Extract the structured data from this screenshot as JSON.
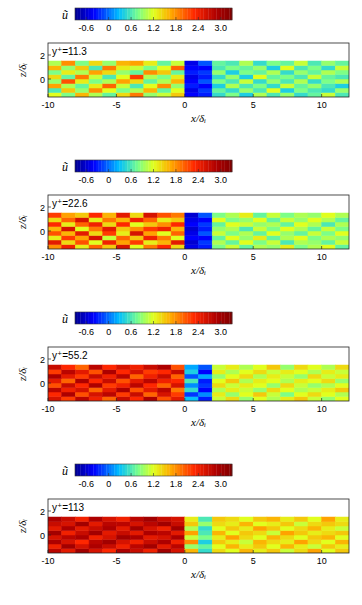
{
  "chart_data": [
    {
      "type": "heatmap",
      "annotation": "y⁺=11.3",
      "x_label": "x/δᵢ",
      "y_label": "z/δᵢ",
      "colorbar_label": "ũ",
      "xlim": [
        -10,
        12
      ],
      "xticks": [
        -10,
        -5,
        0,
        5,
        10
      ],
      "ylim": [
        -1.5,
        3
      ],
      "yticks": [
        0,
        2
      ],
      "color_range": [
        -0.9,
        3.3
      ],
      "color_ticks": [
        -0.6,
        0,
        0.6,
        1.2,
        1.8,
        2.4,
        {
          "value": 3,
          "label": "3.0"
        }
      ],
      "x_bins": [
        -10,
        -9,
        -8,
        -7,
        -6,
        -5,
        -4,
        -3,
        -2,
        -1,
        0,
        1,
        2,
        3,
        4,
        5,
        6,
        7,
        8,
        9,
        10,
        11,
        12
      ],
      "y_bins": [
        -1.5,
        -1.125,
        -0.75,
        -0.375,
        0,
        0.375,
        0.75,
        1.125,
        1.5
      ],
      "cells": [
        [
          1.2,
          0.8,
          1.6,
          1.0,
          0.7,
          1.4,
          1.9,
          0.9,
          1.1,
          1.5,
          -0.4,
          -0.3,
          0.5,
          0.8,
          0.4,
          1.0,
          0.6,
          0.9,
          0.5,
          0.7,
          1.1,
          0.6
        ],
        [
          0.6,
          1.5,
          0.9,
          1.8,
          1.2,
          0.8,
          1.0,
          1.6,
          0.7,
          1.2,
          -0.5,
          -0.2,
          0.7,
          0.5,
          0.9,
          0.6,
          1.2,
          0.4,
          0.8,
          0.6,
          0.5,
          0.9
        ],
        [
          1.7,
          1.0,
          0.7,
          1.3,
          2.0,
          1.1,
          0.6,
          1.2,
          1.8,
          0.9,
          -0.3,
          -0.4,
          0.4,
          1.0,
          0.6,
          0.8,
          0.5,
          1.1,
          0.7,
          0.9,
          0.6,
          0.4
        ],
        [
          0.9,
          2.1,
          1.3,
          0.8,
          1.0,
          1.7,
          1.4,
          0.7,
          1.0,
          1.6,
          -0.4,
          -0.1,
          0.8,
          0.6,
          1.1,
          0.5,
          0.9,
          0.6,
          1.0,
          0.5,
          0.8,
          1.0
        ],
        [
          1.4,
          0.7,
          1.9,
          1.1,
          0.6,
          1.2,
          2.2,
          1.0,
          0.8,
          1.3,
          -0.5,
          -0.3,
          0.5,
          0.9,
          0.4,
          1.2,
          0.7,
          0.8,
          0.6,
          1.1,
          0.7,
          0.6
        ],
        [
          0.8,
          1.3,
          1.0,
          1.7,
          1.4,
          0.9,
          0.7,
          1.8,
          1.5,
          0.7,
          -0.3,
          -0.2,
          0.9,
          0.4,
          0.8,
          0.7,
          1.0,
          0.5,
          0.9,
          0.7,
          1.0,
          0.8
        ],
        [
          1.6,
          0.9,
          1.5,
          0.6,
          1.9,
          1.3,
          1.1,
          0.8,
          1.2,
          2.0,
          -0.4,
          -0.4,
          0.6,
          0.8,
          0.7,
          0.9,
          0.4,
          1.2,
          0.6,
          0.8,
          0.5,
          1.1
        ],
        [
          1.0,
          1.8,
          0.8,
          1.4,
          0.9,
          1.6,
          1.7,
          1.3,
          0.7,
          1.1,
          -0.5,
          -0.1,
          0.7,
          0.6,
          1.0,
          0.5,
          0.8,
          0.7,
          1.1,
          0.6,
          0.9,
          0.7
        ]
      ]
    },
    {
      "type": "heatmap",
      "annotation": "y⁺=22.6",
      "x_label": "x/δᵢ",
      "y_label": "z/δᵢ",
      "colorbar_label": "ũ",
      "xlim": [
        -10,
        12
      ],
      "xticks": [
        -10,
        -5,
        0,
        5,
        10
      ],
      "ylim": [
        -1.5,
        3
      ],
      "yticks": [
        0,
        2
      ],
      "color_range": [
        -0.9,
        3.3
      ],
      "color_ticks": [
        -0.6,
        0,
        0.6,
        1.2,
        1.8,
        2.4,
        {
          "value": 3,
          "label": "3.0"
        }
      ],
      "x_bins": [
        -10,
        -9,
        -8,
        -7,
        -6,
        -5,
        -4,
        -3,
        -2,
        -1,
        0,
        1,
        2,
        3,
        4,
        5,
        6,
        7,
        8,
        9,
        10,
        11,
        12
      ],
      "y_bins": [
        -1.5,
        -1.125,
        -0.75,
        -0.375,
        0,
        0.375,
        0.75,
        1.125,
        1.5
      ],
      "cells": [
        [
          1.8,
          2.4,
          1.3,
          2.0,
          1.5,
          2.6,
          1.2,
          1.9,
          2.3,
          1.4,
          -0.5,
          -0.3,
          0.8,
          1.1,
          0.7,
          1.0,
          0.9,
          1.3,
          0.8,
          1.0,
          1.2,
          0.7
        ],
        [
          2.5,
          1.4,
          2.1,
          1.2,
          2.4,
          1.7,
          2.2,
          1.3,
          1.6,
          2.5,
          -0.6,
          -0.2,
          1.0,
          0.7,
          1.2,
          0.8,
          1.1,
          0.6,
          1.0,
          0.9,
          0.7,
          1.1
        ],
        [
          1.3,
          2.2,
          1.7,
          2.6,
          1.1,
          2.0,
          1.5,
          2.4,
          1.9,
          1.2,
          -0.4,
          -0.4,
          0.7,
          1.2,
          0.9,
          1.3,
          0.7,
          1.0,
          1.2,
          0.8,
          1.0,
          0.9
        ],
        [
          2.1,
          1.6,
          2.5,
          1.4,
          2.2,
          1.3,
          2.6,
          1.7,
          1.2,
          2.0,
          -0.5,
          -0.1,
          1.1,
          0.8,
          1.0,
          0.7,
          1.2,
          0.9,
          0.7,
          1.1,
          0.8,
          1.2
        ],
        [
          1.6,
          2.6,
          1.2,
          1.9,
          2.5,
          1.5,
          1.8,
          2.2,
          2.4,
          1.6,
          -0.6,
          -0.3,
          0.9,
          1.0,
          0.6,
          1.1,
          0.8,
          1.2,
          1.0,
          0.7,
          1.1,
          0.8
        ],
        [
          2.3,
          1.3,
          2.0,
          2.4,
          1.4,
          2.3,
          1.2,
          1.5,
          1.8,
          2.3,
          -0.4,
          -0.2,
          0.7,
          1.2,
          1.1,
          0.9,
          1.0,
          0.7,
          1.2,
          1.0,
          0.6,
          1.0
        ],
        [
          1.4,
          2.0,
          2.6,
          1.3,
          1.9,
          1.6,
          2.4,
          2.0,
          1.3,
          1.5,
          -0.5,
          -0.4,
          1.2,
          0.8,
          0.9,
          1.2,
          0.7,
          1.1,
          0.9,
          1.2,
          1.0,
          0.7
        ],
        [
          2.2,
          1.7,
          1.5,
          2.3,
          1.6,
          2.5,
          1.4,
          2.6,
          2.1,
          1.9,
          -0.6,
          -0.1,
          0.8,
          1.0,
          1.3,
          0.7,
          1.1,
          0.8,
          1.0,
          0.9,
          1.2,
          1.0
        ]
      ]
    },
    {
      "type": "heatmap",
      "annotation": "y⁺=55.2",
      "x_label": "x/δᵢ",
      "y_label": "z/δᵢ",
      "colorbar_label": "ũ",
      "xlim": [
        -10,
        12
      ],
      "xticks": [
        -10,
        -5,
        0,
        5,
        10
      ],
      "ylim": [
        -1.5,
        3
      ],
      "yticks": [
        0,
        2
      ],
      "color_range": [
        -0.9,
        3.3
      ],
      "color_ticks": [
        -0.6,
        0,
        0.6,
        1.2,
        1.8,
        2.4,
        {
          "value": 3,
          "label": "3.0"
        }
      ],
      "x_bins": [
        -10,
        -9,
        -8,
        -7,
        -6,
        -5,
        -4,
        -3,
        -2,
        -1,
        0,
        1,
        2,
        3,
        4,
        5,
        6,
        7,
        8,
        9,
        10,
        11,
        12
      ],
      "y_bins": [
        -1.5,
        -1.125,
        -0.75,
        -0.375,
        0,
        0.375,
        0.75,
        1.125,
        1.5
      ],
      "cells": [
        [
          2.6,
          2.2,
          2.8,
          2.4,
          2.0,
          2.7,
          2.3,
          2.9,
          2.1,
          2.5,
          0.3,
          -0.3,
          1.1,
          1.4,
          0.9,
          1.2,
          1.0,
          1.3,
          1.5,
          1.1,
          0.9,
          1.2
        ],
        [
          2.3,
          2.9,
          2.1,
          2.6,
          2.8,
          2.2,
          2.7,
          2.0,
          2.6,
          2.2,
          -0.2,
          0.1,
          1.3,
          0.9,
          1.2,
          1.5,
          1.1,
          0.8,
          1.2,
          1.4,
          1.2,
          1.0
        ],
        [
          2.8,
          2.4,
          2.6,
          2.0,
          2.5,
          2.9,
          2.1,
          2.5,
          2.8,
          1.9,
          0.5,
          -0.4,
          1.0,
          1.3,
          1.1,
          0.9,
          1.4,
          1.2,
          1.0,
          1.1,
          1.3,
          1.5
        ],
        [
          2.1,
          2.7,
          2.3,
          2.9,
          2.2,
          2.4,
          2.8,
          2.3,
          2.0,
          2.6,
          0.1,
          -0.2,
          1.4,
          1.1,
          1.3,
          1.2,
          0.9,
          1.4,
          1.1,
          0.9,
          1.0,
          1.2
        ],
        [
          2.5,
          2.0,
          2.9,
          2.3,
          2.7,
          2.1,
          2.5,
          2.8,
          2.4,
          2.3,
          0.6,
          -0.3,
          1.2,
          1.5,
          1.0,
          1.3,
          1.2,
          1.0,
          1.3,
          1.2,
          1.4,
          0.9
        ],
        [
          2.9,
          2.5,
          2.2,
          2.7,
          2.4,
          2.8,
          2.0,
          2.4,
          2.7,
          2.0,
          -0.1,
          0.2,
          0.9,
          1.2,
          1.4,
          1.0,
          1.3,
          1.1,
          0.9,
          1.4,
          1.1,
          1.3
        ],
        [
          2.2,
          2.8,
          2.5,
          2.1,
          2.9,
          2.3,
          2.6,
          2.2,
          2.3,
          2.7,
          0.4,
          -0.4,
          1.3,
          1.0,
          1.2,
          1.4,
          1.1,
          1.3,
          1.2,
          1.0,
          1.3,
          1.1
        ],
        [
          2.7,
          2.3,
          2.0,
          2.8,
          2.3,
          2.6,
          2.4,
          2.7,
          2.9,
          2.1,
          0.2,
          -0.1,
          1.1,
          1.3,
          1.0,
          1.2,
          1.5,
          0.9,
          1.4,
          1.2,
          1.0,
          1.4
        ]
      ]
    },
    {
      "type": "heatmap",
      "annotation": "y⁺=113",
      "x_label": "x/δᵢ",
      "y_label": "z/δᵢ",
      "colorbar_label": "ũ",
      "xlim": [
        -10,
        12
      ],
      "xticks": [
        -10,
        -5,
        0,
        5,
        10
      ],
      "ylim": [
        -1.5,
        3
      ],
      "yticks": [
        0,
        2
      ],
      "color_range": [
        -0.9,
        3.3
      ],
      "color_ticks": [
        -0.6,
        0,
        0.6,
        1.2,
        1.8,
        2.4,
        {
          "value": 3,
          "label": "3.0"
        }
      ],
      "x_bins": [
        -10,
        -9,
        -8,
        -7,
        -6,
        -5,
        -4,
        -3,
        -2,
        -1,
        0,
        1,
        2,
        3,
        4,
        5,
        6,
        7,
        8,
        9,
        10,
        11,
        12
      ],
      "y_bins": [
        -1.5,
        -1.125,
        -0.75,
        -0.375,
        0,
        0.375,
        0.75,
        1.125,
        1.5
      ],
      "cells": [
        [
          2.8,
          2.5,
          3.0,
          2.6,
          2.3,
          2.9,
          2.7,
          2.4,
          3.0,
          2.6,
          1.6,
          0.5,
          1.4,
          1.2,
          1.6,
          1.3,
          1.5,
          1.1,
          1.4,
          1.7,
          1.2,
          1.5
        ],
        [
          2.4,
          3.0,
          2.6,
          2.9,
          2.7,
          2.4,
          2.8,
          3.0,
          2.5,
          2.8,
          0.9,
          0.7,
          1.2,
          1.6,
          1.3,
          1.5,
          1.2,
          1.6,
          1.3,
          1.1,
          1.5,
          1.3
        ],
        [
          2.9,
          2.6,
          2.3,
          2.8,
          3.0,
          2.6,
          2.4,
          2.7,
          2.9,
          2.4,
          1.8,
          0.4,
          1.5,
          1.3,
          1.1,
          1.6,
          1.4,
          1.3,
          1.7,
          1.4,
          1.2,
          1.6
        ],
        [
          2.6,
          2.8,
          2.9,
          2.4,
          2.6,
          3.0,
          2.9,
          2.5,
          2.6,
          2.9,
          1.1,
          0.8,
          1.3,
          1.7,
          1.4,
          1.2,
          1.6,
          1.4,
          1.2,
          1.5,
          1.6,
          1.2
        ],
        [
          3.0,
          2.4,
          2.7,
          3.0,
          2.5,
          2.7,
          2.5,
          2.9,
          2.8,
          2.5,
          1.7,
          0.6,
          1.6,
          1.2,
          1.5,
          1.4,
          1.1,
          1.7,
          1.5,
          1.3,
          1.4,
          1.5
        ],
        [
          2.5,
          2.9,
          2.5,
          2.7,
          2.9,
          2.5,
          3.0,
          2.6,
          2.4,
          3.0,
          1.0,
          0.5,
          1.2,
          1.5,
          1.3,
          1.7,
          1.5,
          1.2,
          1.4,
          1.6,
          1.3,
          1.1
        ],
        [
          2.7,
          2.6,
          3.0,
          2.5,
          2.8,
          2.8,
          2.6,
          2.8,
          3.0,
          2.7,
          1.5,
          0.9,
          1.4,
          1.3,
          1.6,
          1.2,
          1.3,
          1.5,
          1.1,
          1.4,
          1.5,
          1.4
        ],
        [
          2.9,
          2.7,
          2.4,
          2.9,
          2.6,
          2.4,
          2.8,
          3.0,
          2.7,
          2.6,
          1.3,
          0.6,
          1.5,
          1.4,
          1.2,
          1.5,
          1.6,
          1.3,
          1.5,
          1.2,
          1.7,
          1.3
        ]
      ]
    }
  ]
}
